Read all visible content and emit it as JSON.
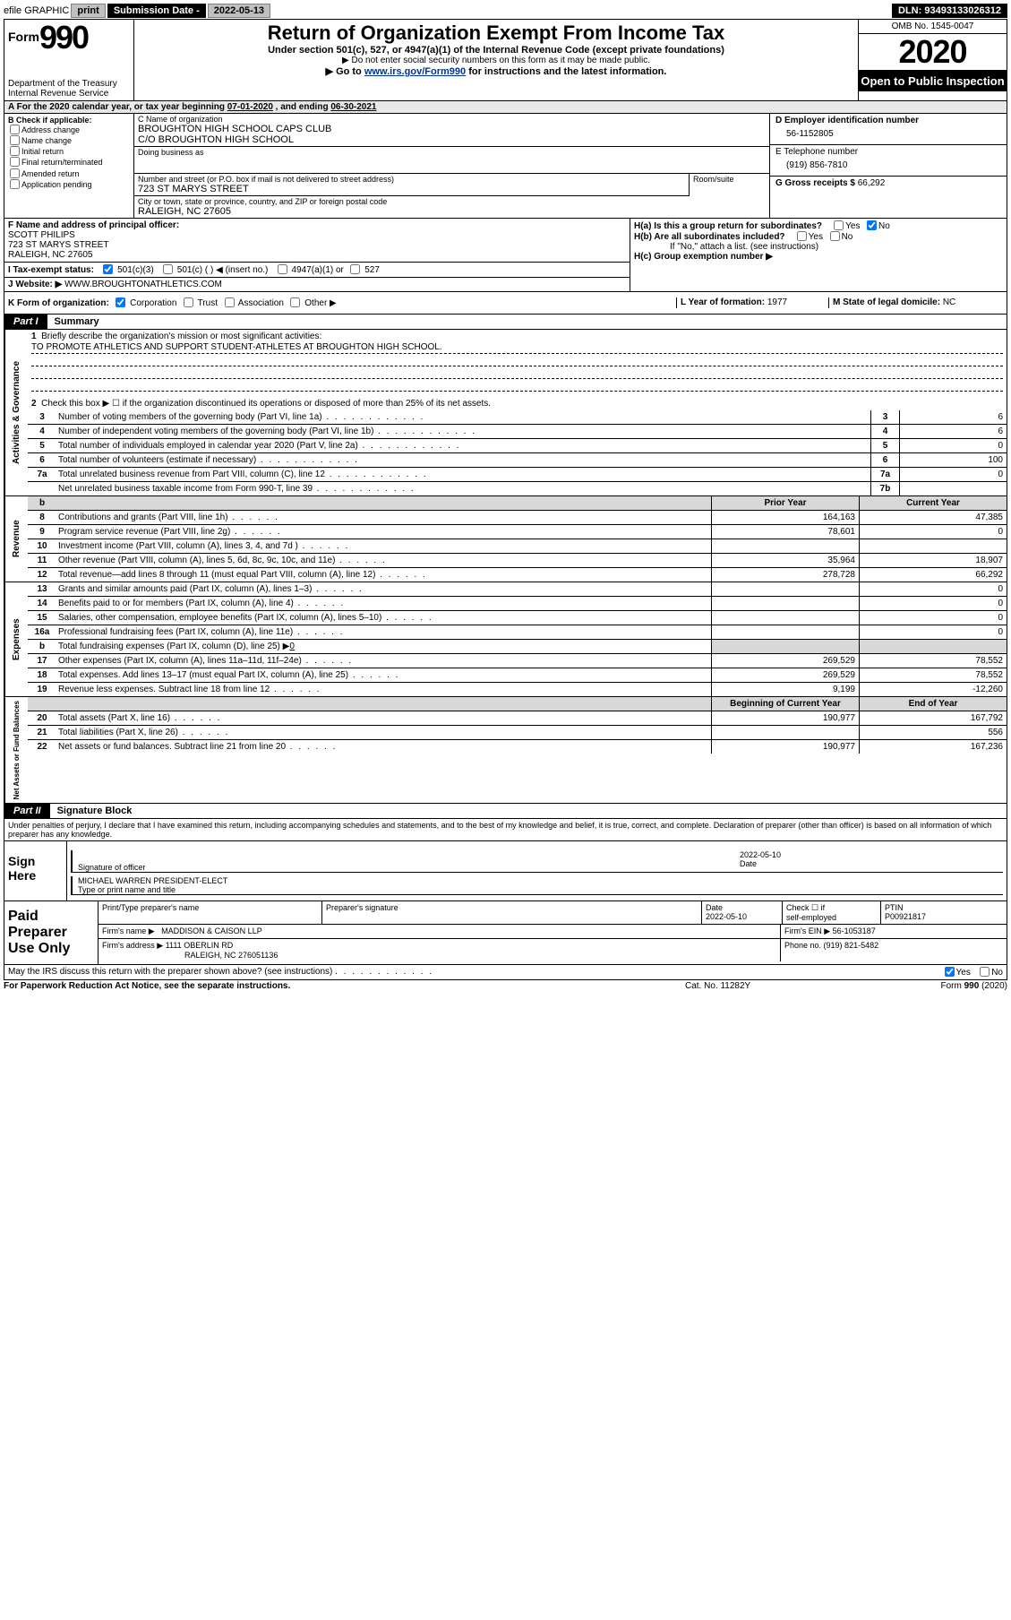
{
  "topbar": {
    "efile": "efile GRAPHIC",
    "print": "print",
    "subdate_lbl": "Submission Date - ",
    "subdate_val": "2022-05-13",
    "dln": "DLN: 93493133026312"
  },
  "hdr": {
    "form_lbl": "Form",
    "form_no": "990",
    "title": "Return of Organization Exempt From Income Tax",
    "sub1": "Under section 501(c), 527, or 4947(a)(1) of the Internal Revenue Code (except private foundations)",
    "sub2": "▶ Do not enter social security numbers on this form as it may be made public.",
    "sub3a": "▶ Go to ",
    "sub3_link": "www.irs.gov/Form990",
    "sub3b": " for instructions and the latest information.",
    "dept": "Department of the Treasury\nInternal Revenue Service",
    "omb": "OMB No. 1545-0047",
    "year": "2020",
    "open": "Open to Public Inspection"
  },
  "taxyear": {
    "a": "A For the 2020 calendar year, or tax year beginning ",
    "begin": "07-01-2020",
    "mid": "  , and ending ",
    "end": "06-30-2021"
  },
  "b": {
    "hdr": "B Check if applicable:",
    "items": [
      "Address change",
      "Name change",
      "Initial return",
      "Final return/terminated",
      "Amended return",
      "Application pending"
    ]
  },
  "c": {
    "name_hdr": "C Name of organization",
    "name_1": "BROUGHTON HIGH SCHOOL CAPS CLUB",
    "name_2": "C/O BROUGHTON HIGH SCHOOL",
    "dba_hdr": "Doing business as",
    "addr_hdr": "Number and street (or P.O. box if mail is not delivered to street address)",
    "room_hdr": "Room/suite",
    "addr": "723 ST MARYS STREET",
    "city_hdr": "City or town, state or province, country, and ZIP or foreign postal code",
    "city": "RALEIGH, NC  27605"
  },
  "d": {
    "hdr": "D Employer identification number",
    "val": "56-1152805"
  },
  "e": {
    "hdr": "E Telephone number",
    "val": "(919) 856-7810"
  },
  "g": {
    "hdr": "G Gross receipts $ ",
    "val": "66,292"
  },
  "f": {
    "hdr": "F Name and address of principal officer:",
    "name": "SCOTT PHILIPS",
    "addr1": "723 ST MARYS STREET",
    "addr2": "RALEIGH, NC  27605"
  },
  "h": {
    "a": "H(a)  Is this a group return for subordinates?",
    "b": "H(b)  Are all subordinates included?",
    "b2": "If \"No,\" attach a list. (see instructions)",
    "c": "H(c)  Group exemption number ▶"
  },
  "i": {
    "lbl": "I Tax-exempt status:",
    "o1": "501(c)(3)",
    "o2": "501(c) (  ) ◀ (insert no.)",
    "o3": "4947(a)(1) or",
    "o4": "527"
  },
  "j": {
    "lbl": "J Website: ▶",
    "val": " WWW.BROUGHTONATHLETICS.COM"
  },
  "k": {
    "lbl": "K Form of organization:",
    "o1": "Corporation",
    "o2": "Trust",
    "o3": "Association",
    "o4": "Other ▶"
  },
  "l": {
    "lbl": "L Year of formation: ",
    "val": "1977"
  },
  "m": {
    "lbl": "M State of legal domicile: ",
    "val": "NC"
  },
  "part1": {
    "tab": "Part I",
    "ttl": "Summary"
  },
  "p1_1": {
    "lbl": "Briefly describe the organization's mission or most significant activities:",
    "val": "TO PROMOTE ATHLETICS AND SUPPORT STUDENT-ATHLETES AT BROUGHTON HIGH SCHOOL."
  },
  "p1_2": "Check this box ▶ ☐  if the organization discontinued its operations or disposed of more than 25% of its net assets.",
  "gov_lines": [
    {
      "n": "3",
      "d": "Number of voting members of the governing body (Part VI, line 1a)",
      "b": "3",
      "v": "6"
    },
    {
      "n": "4",
      "d": "Number of independent voting members of the governing body (Part VI, line 1b)",
      "b": "4",
      "v": "6"
    },
    {
      "n": "5",
      "d": "Total number of individuals employed in calendar year 2020 (Part V, line 2a)",
      "b": "5",
      "v": "0"
    },
    {
      "n": "6",
      "d": "Total number of volunteers (estimate if necessary)",
      "b": "6",
      "v": "100"
    },
    {
      "n": "7a",
      "d": "Total unrelated business revenue from Part VIII, column (C), line 12",
      "b": "7a",
      "v": "0"
    },
    {
      "n": "",
      "d": "Net unrelated business taxable income from Form 990-T, line 39",
      "b": "7b",
      "v": ""
    }
  ],
  "col_hdr": {
    "b": "b",
    "p": "Prior Year",
    "c": "Current Year"
  },
  "revenue": [
    {
      "n": "8",
      "d": "Contributions and grants (Part VIII, line 1h)",
      "p": "164,163",
      "c": "47,385"
    },
    {
      "n": "9",
      "d": "Program service revenue (Part VIII, line 2g)",
      "p": "78,601",
      "c": "0"
    },
    {
      "n": "10",
      "d": "Investment income (Part VIII, column (A), lines 3, 4, and 7d )",
      "p": "",
      "c": ""
    },
    {
      "n": "11",
      "d": "Other revenue (Part VIII, column (A), lines 5, 6d, 8c, 9c, 10c, and 11e)",
      "p": "35,964",
      "c": "18,907"
    },
    {
      "n": "12",
      "d": "Total revenue—add lines 8 through 11 (must equal Part VIII, column (A), line 12)",
      "p": "278,728",
      "c": "66,292"
    }
  ],
  "expenses": [
    {
      "n": "13",
      "d": "Grants and similar amounts paid (Part IX, column (A), lines 1–3)",
      "p": "",
      "c": "0"
    },
    {
      "n": "14",
      "d": "Benefits paid to or for members (Part IX, column (A), line 4)",
      "p": "",
      "c": "0"
    },
    {
      "n": "15",
      "d": "Salaries, other compensation, employee benefits (Part IX, column (A), lines 5–10)",
      "p": "",
      "c": "0"
    },
    {
      "n": "16a",
      "d": "Professional fundraising fees (Part IX, column (A), line 11e)",
      "p": "",
      "c": "0"
    }
  ],
  "exp16b": {
    "n": "b",
    "d": "Total fundraising expenses (Part IX, column (D), line 25) ▶",
    "v": "0"
  },
  "expenses2": [
    {
      "n": "17",
      "d": "Other expenses (Part IX, column (A), lines 11a–11d, 11f–24e)",
      "p": "269,529",
      "c": "78,552"
    },
    {
      "n": "18",
      "d": "Total expenses. Add lines 13–17 (must equal Part IX, column (A), line 25)",
      "p": "269,529",
      "c": "78,552"
    },
    {
      "n": "19",
      "d": "Revenue less expenses. Subtract line 18 from line 12",
      "p": "9,199",
      "c": "-12,260"
    }
  ],
  "na_hdr": {
    "b": "Beginning of Current Year",
    "e": "End of Year"
  },
  "netassets": [
    {
      "n": "20",
      "d": "Total assets (Part X, line 16)",
      "p": "190,977",
      "c": "167,792"
    },
    {
      "n": "21",
      "d": "Total liabilities (Part X, line 26)",
      "p": "",
      "c": "556"
    },
    {
      "n": "22",
      "d": "Net assets or fund balances. Subtract line 21 from line 20",
      "p": "190,977",
      "c": "167,236"
    }
  ],
  "vside": {
    "g": "Activities & Governance",
    "r": "Revenue",
    "e": "Expenses",
    "n": "Net Assets or Fund Balances"
  },
  "part2": {
    "tab": "Part II",
    "ttl": "Signature Block"
  },
  "penalties": "Under penalties of perjury, I declare that I have examined this return, including accompanying schedules and statements, and to the best of my knowledge and belief, it is true, correct, and complete. Declaration of preparer (other than officer) is based on all information of which preparer has any knowledge.",
  "sign": {
    "lbl": "Sign Here",
    "sig_of_officer": "Signature of officer",
    "date_lbl": "Date",
    "date_val": "2022-05-10",
    "name": "MICHAEL WARREN  PRESIDENT-ELECT",
    "type_hdr": "Type or print name and title"
  },
  "prep": {
    "lbl": "Paid Preparer Use Only",
    "h1": "Print/Type preparer's name",
    "h2": "Preparer's signature",
    "h3": "Date",
    "h3v": "2022-05-10",
    "h4a": "Check ☐ if",
    "h4b": "self-employed",
    "h5": "PTIN",
    "h5v": "P00921817",
    "firm_lbl": "Firm's name    ▶",
    "firm_val": "MADDISON & CAISON LLP",
    "ein_lbl": "Firm's EIN ▶",
    "ein_val": "56-1053187",
    "addr_lbl": "Firm's address ▶",
    "addr_1": "1111 OBERLIN RD",
    "addr_2": "RALEIGH, NC  276051136",
    "phone_lbl": "Phone no. ",
    "phone_val": "(919) 821-5482"
  },
  "discuss": "May the IRS discuss this return with the preparer shown above? (see instructions)",
  "bottom": {
    "l": "For Paperwork Reduction Act Notice, see the separate instructions.",
    "m": "Cat. No. 11282Y",
    "r": "Form 990 (2020)"
  },
  "yes": "Yes",
  "no": "No"
}
